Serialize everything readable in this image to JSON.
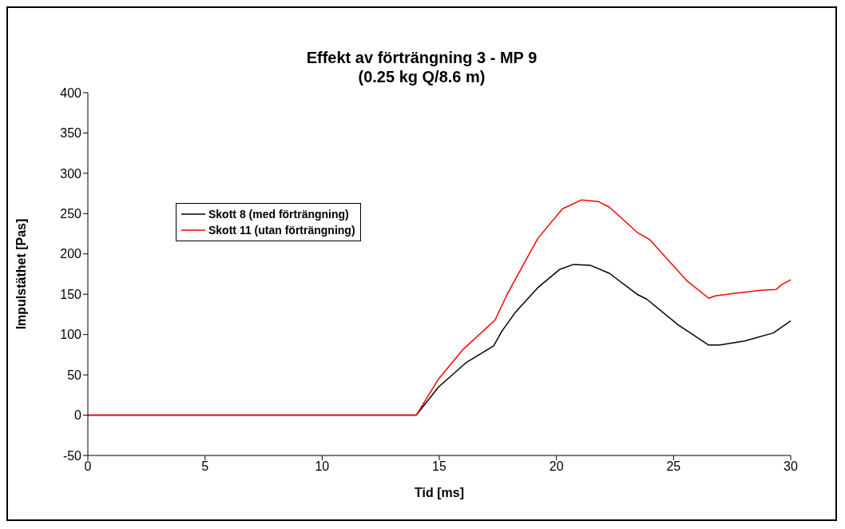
{
  "chart_data": {
    "type": "line",
    "title": "Effekt av förträngning 3 - MP 9",
    "subtitle": "(0.25 kg Q/8.6 m)",
    "xlabel": "Tid [ms]",
    "ylabel": "Impulstäthet [Pas]",
    "xlim": [
      0,
      30
    ],
    "xticks": [
      0,
      5,
      10,
      15,
      20,
      25,
      30
    ],
    "ylim": [
      -50,
      400
    ],
    "yticks": [
      -50,
      0,
      50,
      100,
      150,
      200,
      250,
      300,
      350,
      400
    ],
    "grid": false,
    "legend": "left",
    "marker": "none",
    "line_style": "solid",
    "series": [
      {
        "name": "Skott 8 (med förträngning)",
        "color": "#000000",
        "x": [
          0,
          5,
          10,
          12,
          14.02,
          14.97,
          16.14,
          17.32,
          17.67,
          18.26,
          19.2,
          20.15,
          20.73,
          21.44,
          22.26,
          23.44,
          23.85,
          25.2,
          26.5,
          26.97,
          28.03,
          29.26,
          30
        ],
        "values": [
          0,
          0,
          0,
          0,
          0,
          35,
          65,
          86,
          104,
          128,
          158,
          181,
          187,
          186,
          176,
          150,
          144,
          112,
          87,
          87,
          92,
          102,
          117
        ]
      },
      {
        "name": "Skott 11 (utan förträngning)",
        "color": "#ff0000",
        "x": [
          0,
          5,
          10,
          12,
          14.02,
          14.97,
          16.03,
          17.38,
          17.9,
          19.2,
          20.26,
          21.08,
          21.79,
          22.26,
          23.44,
          23.97,
          25.56,
          26.5,
          26.79,
          27.56,
          28.73,
          29.38,
          29.62,
          30
        ],
        "values": [
          0,
          0,
          0,
          0,
          0,
          45,
          82,
          118,
          150,
          219,
          256,
          267,
          265,
          258,
          227,
          218,
          167,
          145,
          148,
          151,
          155,
          156,
          162,
          168
        ]
      }
    ]
  }
}
